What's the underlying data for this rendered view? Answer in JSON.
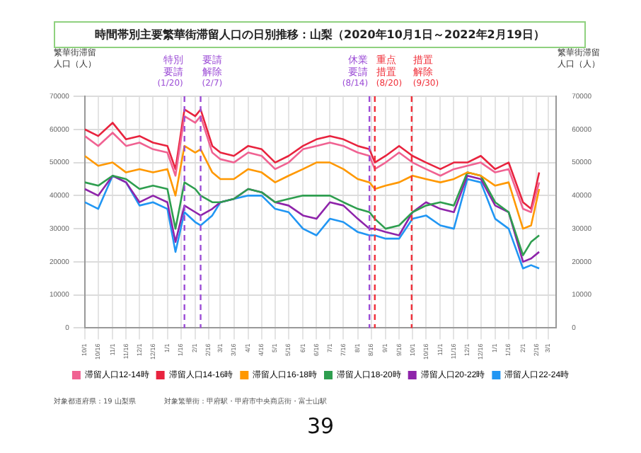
{
  "chart_data": {
    "type": "line",
    "title": "時間帯別主要繁華街滞留人口の日別推移：山梨（2020年10月1日～2022年2月19日）",
    "ylabel": "繁華街滞留人口（人）",
    "y2label": "繁華街滞留人口（人）",
    "x": [
      "2020-10-01",
      "2020-10-16",
      "2020-11-01",
      "2020-11-16",
      "2020-12-01",
      "2020-12-16",
      "2021-01-01",
      "2021-01-10",
      "2021-01-20",
      "2021-02-01",
      "2021-02-07",
      "2021-02-20",
      "2021-03-01",
      "2021-03-16",
      "2021-04-01",
      "2021-04-16",
      "2021-05-01",
      "2021-05-16",
      "2021-06-01",
      "2021-06-16",
      "2021-07-01",
      "2021-07-16",
      "2021-08-01",
      "2021-08-14",
      "2021-08-20",
      "2021-09-01",
      "2021-09-16",
      "2021-10-01",
      "2021-10-16",
      "2021-11-01",
      "2021-11-16",
      "2021-12-01",
      "2021-12-16",
      "2022-01-01",
      "2022-01-16",
      "2022-02-01",
      "2022-02-10",
      "2022-02-19"
    ],
    "series": [
      {
        "name": "滞留人口12-14時",
        "color": "#f06292",
        "values": [
          58000,
          55000,
          59000,
          55000,
          56000,
          54000,
          53000,
          46000,
          64000,
          62000,
          64000,
          53000,
          51000,
          50000,
          53000,
          52000,
          48000,
          50000,
          54000,
          55000,
          56000,
          55000,
          53000,
          52000,
          48000,
          50000,
          53000,
          50000,
          48000,
          46000,
          48000,
          49000,
          50000,
          47000,
          48000,
          36000,
          35000,
          44000
        ]
      },
      {
        "name": "滞留人口14-16時",
        "color": "#e8233e",
        "values": [
          60000,
          58000,
          62000,
          57000,
          58000,
          56000,
          55000,
          48000,
          66000,
          64000,
          66000,
          55000,
          53000,
          52000,
          55000,
          54000,
          50000,
          52000,
          55000,
          57000,
          58000,
          57000,
          55000,
          54000,
          50000,
          52000,
          55000,
          52000,
          50000,
          48000,
          50000,
          50000,
          52000,
          48000,
          50000,
          38000,
          36000,
          47000
        ]
      },
      {
        "name": "滞留人口16-18時",
        "color": "#ff9800",
        "values": [
          52000,
          49000,
          50000,
          47000,
          48000,
          47000,
          48000,
          40000,
          55000,
          53000,
          54000,
          47000,
          45000,
          45000,
          48000,
          47000,
          44000,
          46000,
          48000,
          50000,
          50000,
          48000,
          45000,
          44000,
          42000,
          43000,
          44000,
          46000,
          45000,
          44000,
          45000,
          47000,
          46000,
          43000,
          44000,
          30000,
          31000,
          42000
        ]
      },
      {
        "name": "滞留人口18-20時",
        "color": "#2e9e4f",
        "values": [
          44000,
          43000,
          46000,
          45000,
          42000,
          43000,
          42000,
          30000,
          44000,
          42000,
          40000,
          38000,
          38000,
          39000,
          42000,
          41000,
          38000,
          39000,
          40000,
          40000,
          40000,
          38000,
          36000,
          35000,
          33000,
          30000,
          31000,
          35000,
          37000,
          38000,
          37000,
          47000,
          46000,
          38000,
          35000,
          22000,
          26000,
          28000
        ]
      },
      {
        "name": "滞留人口20-22時",
        "color": "#8e24aa",
        "values": [
          42000,
          40000,
          46000,
          44000,
          38000,
          40000,
          38000,
          26000,
          37000,
          35000,
          34000,
          36000,
          38000,
          39000,
          42000,
          41000,
          38000,
          37000,
          34000,
          33000,
          38000,
          37000,
          33000,
          30000,
          30000,
          29000,
          28000,
          35000,
          38000,
          36000,
          35000,
          46000,
          45000,
          37000,
          35000,
          20000,
          21000,
          23000
        ]
      },
      {
        "name": "滞留人口22-24時",
        "color": "#2196f3",
        "values": [
          38000,
          36000,
          46000,
          44000,
          37000,
          38000,
          36000,
          23000,
          35000,
          32000,
          31000,
          34000,
          38000,
          39000,
          40000,
          40000,
          36000,
          35000,
          30000,
          28000,
          33000,
          32000,
          29000,
          28000,
          28000,
          27000,
          27000,
          33000,
          34000,
          31000,
          30000,
          45000,
          44000,
          33000,
          30000,
          18000,
          19000,
          18000
        ]
      }
    ],
    "xlim": [
      "2020-10-01",
      "2022-03-10"
    ],
    "xticks": [
      {
        "value": "2020-10-01",
        "label": "10/1"
      },
      {
        "value": "2020-10-16",
        "label": "10/16"
      },
      {
        "value": "2020-11-01",
        "label": "11/1"
      },
      {
        "value": "2020-11-16",
        "label": "11/16"
      },
      {
        "value": "2020-12-01",
        "label": "12/1"
      },
      {
        "value": "2020-12-16",
        "label": "12/16"
      },
      {
        "value": "2021-01-01",
        "label": "1/1"
      },
      {
        "value": "2021-01-16",
        "label": "1/16"
      },
      {
        "value": "2021-02-01",
        "label": "2/1"
      },
      {
        "value": "2021-02-16",
        "label": "2/16"
      },
      {
        "value": "2021-03-01",
        "label": "3/1"
      },
      {
        "value": "2021-03-16",
        "label": "3/16"
      },
      {
        "value": "2021-04-01",
        "label": "4/1"
      },
      {
        "value": "2021-04-16",
        "label": "4/16"
      },
      {
        "value": "2021-05-01",
        "label": "5/1"
      },
      {
        "value": "2021-05-16",
        "label": "5/16"
      },
      {
        "value": "2021-06-01",
        "label": "6/1"
      },
      {
        "value": "2021-06-16",
        "label": "6/16"
      },
      {
        "value": "2021-07-01",
        "label": "7/1"
      },
      {
        "value": "2021-07-16",
        "label": "7/16"
      },
      {
        "value": "2021-08-01",
        "label": "8/1"
      },
      {
        "value": "2021-08-16",
        "label": "8/16"
      },
      {
        "value": "2021-09-01",
        "label": "9/1"
      },
      {
        "value": "2021-09-16",
        "label": "9/16"
      },
      {
        "value": "2021-10-01",
        "label": "10/1"
      },
      {
        "value": "2021-10-16",
        "label": "10/16"
      },
      {
        "value": "2021-11-01",
        "label": "11/1"
      },
      {
        "value": "2021-11-16",
        "label": "11/16"
      },
      {
        "value": "2021-12-01",
        "label": "12/1"
      },
      {
        "value": "2021-12-16",
        "label": "12/16"
      },
      {
        "value": "2022-01-01",
        "label": "1/1"
      },
      {
        "value": "2022-01-16",
        "label": "1/16"
      },
      {
        "value": "2022-02-01",
        "label": "2/1"
      },
      {
        "value": "2022-02-16",
        "label": "2/16"
      },
      {
        "value": "2022-03-01",
        "label": "3/1"
      }
    ],
    "ylim": [
      0,
      70000
    ],
    "yticks": [
      0,
      10000,
      20000,
      30000,
      40000,
      50000,
      60000,
      70000
    ],
    "y2lim": [
      0,
      70000
    ],
    "y2ticks": [
      0,
      10000,
      20000,
      30000,
      40000,
      50000,
      60000,
      70000
    ],
    "ref_lines": [
      {
        "axis": "x",
        "value": "2021-01-20",
        "label": "特別要請(1/20)",
        "color": "#9c4dd6",
        "line_style": "dashed"
      },
      {
        "axis": "x",
        "value": "2021-02-07",
        "label": "要請解除(2/7)",
        "color": "#9c4dd6",
        "line_style": "dashed"
      },
      {
        "axis": "x",
        "value": "2021-08-14",
        "label": "休業要請(8/14)",
        "color": "#9c4dd6",
        "line_style": "dashed"
      },
      {
        "axis": "x",
        "value": "2021-08-20",
        "label": "重点措置(8/20)",
        "color": "#f0303a",
        "line_style": "dashed"
      },
      {
        "axis": "x",
        "value": "2021-09-30",
        "label": "措置解除(9/30)",
        "color": "#f0303a",
        "line_style": "dashed"
      }
    ],
    "grid": true,
    "legend": "bottom",
    "marker": "none",
    "line_style": "solid",
    "annotations": [
      "対象都道府県：19 山梨県",
      "対象繁華街：甲府駅・甲府市中央商店街・富士山駅",
      "39"
    ]
  }
}
